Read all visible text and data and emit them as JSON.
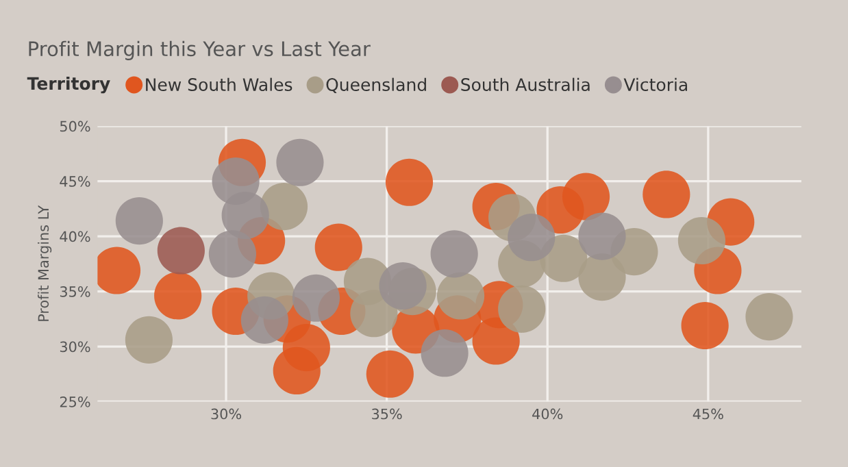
{
  "chart_data": {
    "type": "bubble",
    "title": "Profit Margin this Year vs Last Year",
    "ylabel": "Profit Margins LY",
    "legend_title": "Territory",
    "legend": "top left",
    "xlim": [
      26,
      47.9
    ],
    "ylim": [
      25,
      50
    ],
    "xticks": [
      {
        "value": 30,
        "label": "30%"
      },
      {
        "value": 35,
        "label": "35%"
      },
      {
        "value": 40,
        "label": "40%"
      },
      {
        "value": 45,
        "label": "45%"
      }
    ],
    "yticks": [
      {
        "value": 25,
        "label": "25%"
      },
      {
        "value": 30,
        "label": "30%"
      },
      {
        "value": 35,
        "label": "35%"
      },
      {
        "value": 40,
        "label": "40%"
      },
      {
        "value": 45,
        "label": "45%"
      },
      {
        "value": 50,
        "label": "50%"
      }
    ],
    "grid": true,
    "series": [
      {
        "name": "New South Wales",
        "color": "#e0561f",
        "x": [
          26.6,
          28.5,
          30.5,
          31.1,
          30.3,
          31.9,
          32.5,
          32.2,
          33.5,
          33.6,
          35.7,
          35.1,
          35.9,
          37.2,
          38.5,
          38.4,
          38.4,
          40.4,
          41.2,
          43.7,
          45.7,
          45.3,
          44.9
        ],
        "values": [
          36.9,
          34.6,
          46.7,
          39.6,
          33.2,
          32.5,
          29.9,
          27.8,
          39.0,
          33.2,
          44.9,
          27.5,
          31.5,
          32.5,
          33.8,
          30.5,
          42.7,
          42.4,
          43.6,
          43.8,
          41.3,
          36.9,
          31.9
        ],
        "sizes": [
          1,
          1,
          1,
          1,
          1,
          1,
          1,
          1,
          1,
          1,
          1,
          1,
          1,
          1,
          1,
          1,
          1,
          1,
          1,
          1,
          1,
          1,
          1
        ]
      },
      {
        "name": "Queensland",
        "color": "#a89d88",
        "x": [
          27.6,
          31.8,
          31.4,
          34.4,
          34.6,
          35.8,
          37.3,
          39.2,
          39.2,
          40.5,
          41.7,
          42.7,
          44.8,
          46.9,
          38.9
        ],
        "values": [
          30.6,
          42.7,
          34.6,
          35.9,
          33.0,
          35.0,
          34.6,
          33.4,
          37.5,
          38.0,
          36.3,
          38.6,
          39.6,
          32.7,
          41.7
        ],
        "sizes": [
          1,
          1,
          1,
          1,
          1,
          1,
          1,
          1,
          1,
          1,
          1,
          1,
          1,
          1,
          1
        ]
      },
      {
        "name": "South Australia",
        "color": "#9c5a52",
        "x": [
          28.6
        ],
        "values": [
          38.7
        ],
        "sizes": [
          1
        ]
      },
      {
        "name": "Victoria",
        "color": "#978e90",
        "x": [
          27.3,
          30.3,
          32.3,
          30.6,
          30.2,
          31.2,
          32.8,
          35.5,
          37.1,
          36.8,
          39.5,
          41.7
        ],
        "values": [
          41.4,
          45.0,
          46.7,
          41.9,
          38.4,
          32.4,
          34.4,
          35.5,
          38.4,
          29.4,
          39.9,
          40.0
        ],
        "sizes": [
          1,
          1,
          1,
          1,
          1,
          1,
          1,
          1,
          1,
          1,
          1,
          1
        ]
      }
    ]
  }
}
